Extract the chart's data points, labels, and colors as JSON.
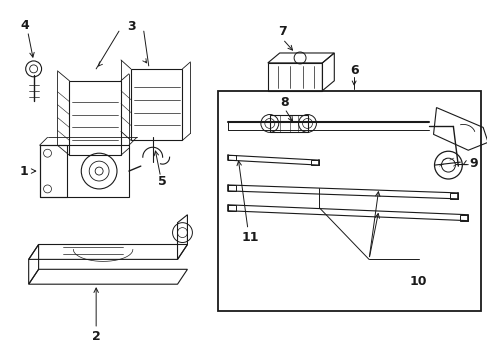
{
  "bg_color": "#ffffff",
  "line_color": "#1a1a1a",
  "fig_width": 4.89,
  "fig_height": 3.6,
  "dpi": 100,
  "font_size": 9,
  "lw": 0.8
}
